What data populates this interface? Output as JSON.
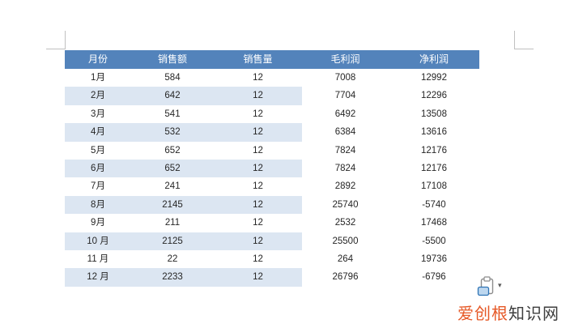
{
  "colors": {
    "header_bg": "#5383BB",
    "band_bg": "#DCE6F2",
    "header_text": "#FFFFFF",
    "cell_text": "#262626",
    "crop_mark": "#C0C0C0",
    "watermark_primary": "#E65826",
    "watermark_secondary": "#3D3D3D",
    "paste_icon_gray": "#8C8C8C",
    "paste_icon_blue_fill": "#BDD7EF",
    "paste_icon_blue_stroke": "#2E74B5"
  },
  "table": {
    "columns": [
      "月份",
      "销售额",
      "销售量",
      "毛利润",
      "净利润"
    ],
    "rows": [
      [
        "1月",
        "584",
        "12",
        "7008",
        "12992"
      ],
      [
        "2月",
        "642",
        "12",
        "7704",
        "12296"
      ],
      [
        "3月",
        "541",
        "12",
        "6492",
        "13508"
      ],
      [
        "4月",
        "532",
        "12",
        "6384",
        "13616"
      ],
      [
        "5月",
        "652",
        "12",
        "7824",
        "12176"
      ],
      [
        "6月",
        "652",
        "12",
        "7824",
        "12176"
      ],
      [
        "7月",
        "241",
        "12",
        "2892",
        "17108"
      ],
      [
        "8月",
        "2145",
        "12",
        "25740",
        "-5740"
      ],
      [
        "9月",
        "211",
        "12",
        "2532",
        "17468"
      ],
      [
        "10 月",
        "2125",
        "12",
        "25500",
        "-5500"
      ],
      [
        "11 月",
        "22",
        "12",
        "264",
        "19736"
      ],
      [
        "12 月",
        "2233",
        "12",
        "26796",
        "-6796"
      ]
    ]
  },
  "paste_button": {
    "caret": "▾"
  },
  "watermark": {
    "primary": "爱创根",
    "secondary": "知识网"
  }
}
